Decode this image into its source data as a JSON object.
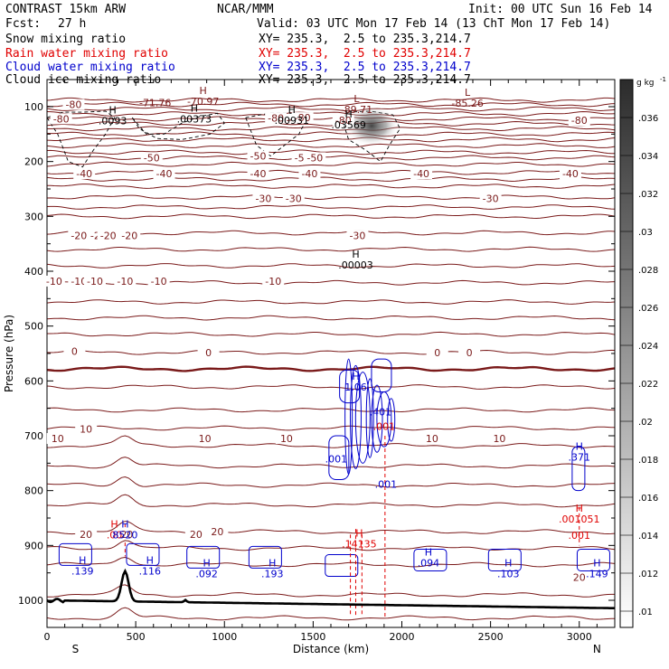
{
  "header": {
    "model": "CONTRAST 15km ARW",
    "org": "NCAR/MMM",
    "init": "Init: 00 UTC Sun 16 Feb 14",
    "fcst_label": "Fcst:",
    "fcst_value": "27 h",
    "valid": "Valid: 03 UTC Mon 17 Feb 14 (13 ChT Mon 17 Feb 14)"
  },
  "fields": [
    {
      "name": "Snow mixing ratio",
      "color": "#000000",
      "xy": "XY= 235.3,  2.5 to 235.3,214.7"
    },
    {
      "name": "Rain water mixing ratio",
      "color": "#e00000",
      "xy": "XY= 235.3,  2.5 to 235.3,214.7"
    },
    {
      "name": "Cloud water mixing ratio",
      "color": "#0000cc",
      "xy": "XY= 235.3,  2.5 to 235.3,214.7"
    },
    {
      "name": "Cloud ice mixing ratio",
      "color": "#000000",
      "xy": "XY= 235.3,  2.5 to 235.3,214.7"
    }
  ],
  "chart_data": {
    "type": "cross-section",
    "xlabel": "Distance (km)",
    "ylabel": "Pressure (hPa)",
    "xlim": [
      0,
      3200
    ],
    "ylim": [
      1050,
      70
    ],
    "xticks": [
      0,
      500,
      1000,
      1500,
      2000,
      2500,
      3000
    ],
    "yticks": [
      100,
      200,
      300,
      400,
      500,
      600,
      700,
      800,
      900,
      1000
    ],
    "left_end": "S",
    "right_end": "N",
    "colorbar": {
      "unit_text": "g kg",
      "unit_exp": "-1",
      "ticks": [
        ".01",
        ".012",
        ".014",
        ".016",
        ".018",
        ".02",
        ".022",
        ".024",
        ".026",
        ".028",
        ".03",
        ".032",
        ".034",
        ".036"
      ]
    },
    "temperature_isotherms": [
      {
        "p": 1032,
        "label": ""
      },
      {
        "p": 990,
        "label": ""
      },
      {
        "p": 935,
        "label": "20"
      },
      {
        "p": 905,
        "label": ""
      },
      {
        "p": 875,
        "label": "20"
      },
      {
        "p": 826,
        "label": ""
      },
      {
        "p": 790,
        "label": ""
      },
      {
        "p": 755,
        "label": ""
      },
      {
        "p": 718,
        "label": "10"
      },
      {
        "p": 686,
        "label": "10"
      },
      {
        "p": 653,
        "label": ""
      },
      {
        "p": 611,
        "label": ""
      },
      {
        "p": 578,
        "label": "0",
        "bold": true
      },
      {
        "p": 548,
        "label": "0"
      },
      {
        "p": 515,
        "label": ""
      },
      {
        "p": 485,
        "label": ""
      },
      {
        "p": 456,
        "label": ""
      },
      {
        "p": 421,
        "label": "-10"
      },
      {
        "p": 390,
        "label": "-10"
      },
      {
        "p": 360,
        "label": ""
      },
      {
        "p": 330,
        "label": "-20"
      },
      {
        "p": 300,
        "label": "-30"
      },
      {
        "p": 283,
        "label": ""
      },
      {
        "p": 265,
        "label": "-30"
      },
      {
        "p": 245,
        "label": ""
      },
      {
        "p": 232,
        "label": ""
      },
      {
        "p": 220,
        "label": "-40"
      },
      {
        "p": 205,
        "label": ""
      },
      {
        "p": 193,
        "label": "-50"
      },
      {
        "p": 183,
        "label": ""
      },
      {
        "p": 171,
        "label": ""
      },
      {
        "p": 160,
        "label": ""
      },
      {
        "p": 150,
        "label": ""
      },
      {
        "p": 140,
        "label": ""
      },
      {
        "p": 131,
        "label": ""
      },
      {
        "p": 122,
        "label": "-80"
      },
      {
        "p": 113,
        "label": ""
      },
      {
        "p": 104,
        "label": ""
      },
      {
        "p": 96,
        "label": "-80"
      },
      {
        "p": 88,
        "label": ""
      }
    ],
    "isotherm_labels": [
      {
        "x": 40,
        "p": 418,
        "text": "-10"
      },
      {
        "x": 180,
        "p": 418,
        "text": "-10"
      },
      {
        "x": 270,
        "p": 418,
        "text": "-10"
      },
      {
        "x": 440,
        "p": 418,
        "text": "-10"
      },
      {
        "x": 630,
        "p": 418,
        "text": "-10"
      },
      {
        "x": 1275,
        "p": 418,
        "text": "-10"
      },
      {
        "x": 180,
        "p": 335,
        "text": "-20"
      },
      {
        "x": 290,
        "p": 335,
        "text": "-20"
      },
      {
        "x": 345,
        "p": 335,
        "text": "-20"
      },
      {
        "x": 465,
        "p": 335,
        "text": "-20"
      },
      {
        "x": 1750,
        "p": 335,
        "text": "-30"
      },
      {
        "x": 1220,
        "p": 267,
        "text": "-30"
      },
      {
        "x": 1390,
        "p": 267,
        "text": "-30"
      },
      {
        "x": 2500,
        "p": 267,
        "text": "-30"
      },
      {
        "x": 210,
        "p": 222,
        "text": "-40"
      },
      {
        "x": 1190,
        "p": 222,
        "text": "-40"
      },
      {
        "x": 1480,
        "p": 222,
        "text": "-40"
      },
      {
        "x": 2110,
        "p": 222,
        "text": "-40"
      },
      {
        "x": 660,
        "p": 222,
        "text": "-40"
      },
      {
        "x": 2950,
        "p": 222,
        "text": "-40"
      },
      {
        "x": 1440,
        "p": 193,
        "text": "-50"
      },
      {
        "x": 590,
        "p": 193,
        "text": "-50"
      },
      {
        "x": 1510,
        "p": 193,
        "text": "-50"
      },
      {
        "x": 1440,
        "p": 120,
        "text": "-80"
      },
      {
        "x": 80,
        "p": 122,
        "text": "-80"
      },
      {
        "x": 3000,
        "p": 125,
        "text": "-80"
      },
      {
        "x": 150,
        "p": 96,
        "text": "-80"
      },
      {
        "x": 1670,
        "p": 125,
        "text": "-80"
      },
      {
        "x": 60,
        "p": 705,
        "text": "10"
      },
      {
        "x": 220,
        "p": 688,
        "text": "10"
      },
      {
        "x": 890,
        "p": 705,
        "text": "10"
      },
      {
        "x": 1350,
        "p": 705,
        "text": "10"
      },
      {
        "x": 2170,
        "p": 705,
        "text": "10"
      },
      {
        "x": 2550,
        "p": 705,
        "text": "10"
      },
      {
        "x": 220,
        "p": 880,
        "text": "20"
      },
      {
        "x": 450,
        "p": 880,
        "text": "20"
      },
      {
        "x": 840,
        "p": 880,
        "text": "20"
      },
      {
        "x": 960,
        "p": 875,
        "text": "20"
      },
      {
        "x": 3000,
        "p": 958,
        "text": "20"
      },
      {
        "x": 910,
        "p": 548,
        "text": "0"
      },
      {
        "x": 155,
        "p": 546,
        "text": "0"
      },
      {
        "x": 2200,
        "p": 548,
        "text": "0"
      },
      {
        "x": 2380,
        "p": 548,
        "text": "0"
      },
      {
        "x": 1190,
        "p": 190,
        "text": "-50"
      },
      {
        "x": 1290,
        "p": 121,
        "text": "-80"
      }
    ],
    "extrema": [
      {
        "x": 880,
        "p": 92,
        "letter": "H",
        "value": "-70.97",
        "color": "#7a1a1a"
      },
      {
        "x": 610,
        "p": 94,
        "letter": "",
        "value": "-71.76",
        "color": "#7a1a1a"
      },
      {
        "x": 1745,
        "p": 107,
        "letter": "L",
        "value": "-89.71",
        "color": "#7a1a1a"
      },
      {
        "x": 2370,
        "p": 95,
        "letter": "L",
        "value": "-85.26",
        "color": "#7a1a1a"
      },
      {
        "x": 370,
        "p": 127,
        "letter": "H",
        "value": ".0093",
        "color": "#000000"
      },
      {
        "x": 830,
        "p": 124,
        "letter": "H",
        "value": ".00373",
        "color": "#000000"
      },
      {
        "x": 1380,
        "p": 126,
        "letter": "H",
        "value": ".00931",
        "color": "#000000"
      },
      {
        "x": 1700,
        "p": 135,
        "letter": "H",
        "value": ".03569",
        "color": "#000000"
      },
      {
        "x": 1740,
        "p": 390,
        "letter": "H",
        "value": ".00003",
        "color": "#000000"
      },
      {
        "x": 1740,
        "p": 613,
        "letter": "H",
        "value": "1.06",
        "color": "#0000cc"
      },
      {
        "x": 1880,
        "p": 658,
        "letter": "",
        "value": ".401",
        "color": "#0000cc"
      },
      {
        "x": 1630,
        "p": 744,
        "letter": "",
        "value": ".001",
        "color": "#0000cc"
      },
      {
        "x": 1910,
        "p": 790,
        "letter": "",
        "value": ".001",
        "color": "#0000cc"
      },
      {
        "x": 3000,
        "p": 740,
        "letter": "H",
        "value": ".371",
        "color": "#0000cc"
      },
      {
        "x": 3000,
        "p": 853,
        "letter": "H",
        "value": ".001051",
        "color": "#e00000"
      },
      {
        "x": 3000,
        "p": 883,
        "letter": "",
        "value": ".001",
        "color": "#e00000"
      },
      {
        "x": 1900,
        "p": 684,
        "letter": "",
        "value": ".001",
        "color": "#e00000"
      },
      {
        "x": 1760,
        "p": 899,
        "letter": "H",
        "value": ".14135",
        "color": "#e00000"
      },
      {
        "x": 380,
        "p": 882,
        "letter": "H",
        "value": ".00",
        "color": "#e00000"
      },
      {
        "x": 440,
        "p": 882,
        "letter": "H",
        "value": "8520",
        "color": "#0000cc"
      },
      {
        "x": 200,
        "p": 948,
        "letter": "H",
        "value": ".139",
        "color": "#0000cc"
      },
      {
        "x": 580,
        "p": 948,
        "letter": "H",
        "value": ".116",
        "color": "#0000cc"
      },
      {
        "x": 900,
        "p": 953,
        "letter": "H",
        "value": ".092",
        "color": "#0000cc"
      },
      {
        "x": 1270,
        "p": 953,
        "letter": "H",
        "value": ".193",
        "color": "#0000cc"
      },
      {
        "x": 2150,
        "p": 933,
        "letter": "H",
        "value": ".094",
        "color": "#0000cc"
      },
      {
        "x": 2600,
        "p": 953,
        "letter": "H",
        "value": ".103",
        "color": "#0000cc"
      },
      {
        "x": 3100,
        "p": 953,
        "letter": "H",
        "value": ".149",
        "color": "#0000cc"
      }
    ]
  }
}
